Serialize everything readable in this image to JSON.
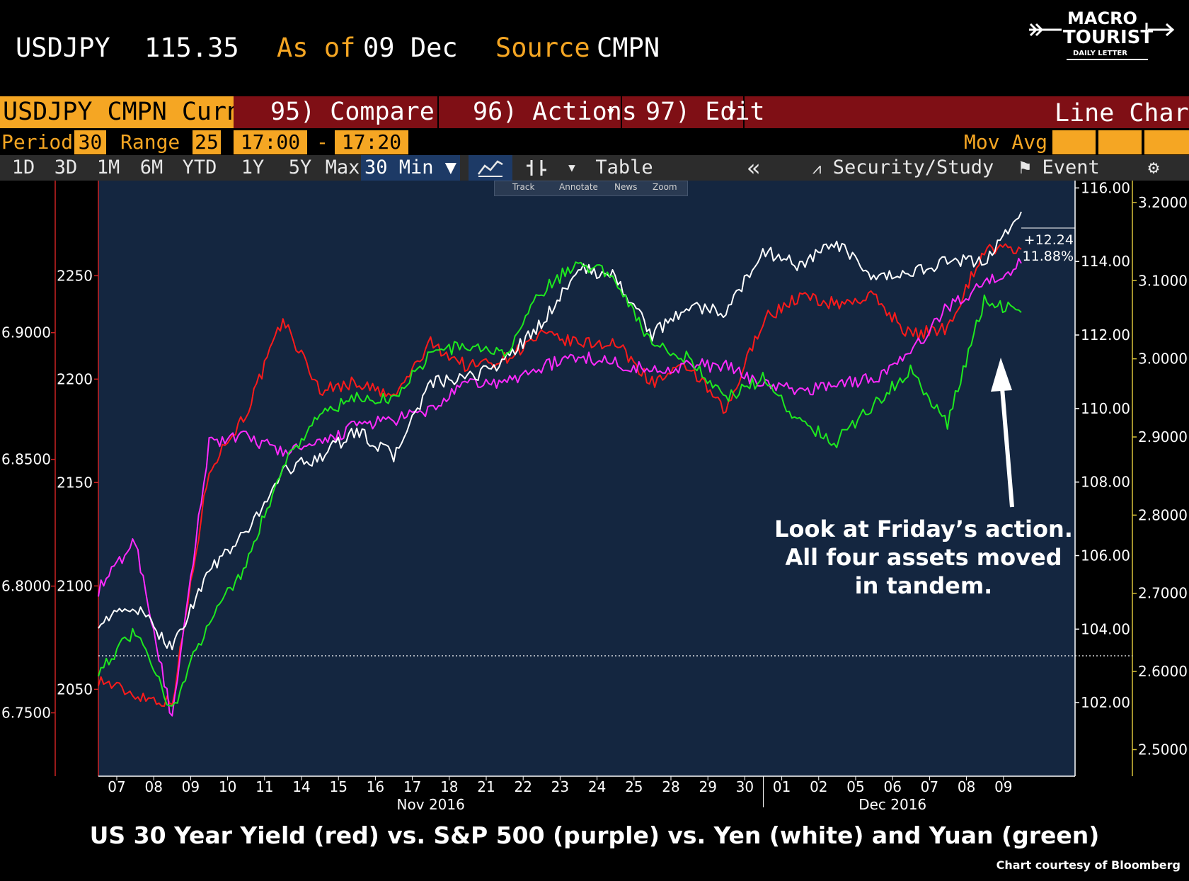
{
  "header": {
    "ticker": "USDJPY",
    "price": "115.35",
    "as_of_label": "As of",
    "as_of_date": "09 Dec",
    "source_label": "Source",
    "source_value": "CMPN"
  },
  "logo": {
    "line1": "MACRO",
    "line2": "TOURIST",
    "line3": "DAILY LETTER"
  },
  "toolbar": {
    "security": "USDJPY CMPN Curnc",
    "compare": "95) Compare",
    "actions": "96) Actions",
    "edit": "97) Edit",
    "chart_type": "Line Chart",
    "period_label": "Period",
    "period_value": "30",
    "range_label": "Range",
    "range_value": "25",
    "time_from": "17:00",
    "dash": "-",
    "time_to": "17:20",
    "mov_avg": "Mov Avg",
    "ranges": [
      "1D",
      "3D",
      "1M",
      "6M",
      "YTD",
      "1Y",
      "5Y",
      "Max"
    ],
    "interval": "30 Min ▼",
    "table": "Table",
    "back": "«",
    "security_study": "Security/Study",
    "event": "Event",
    "settings_icon": "gear-icon",
    "mini_tools": [
      "Track",
      "Annotate",
      "News",
      "Zoom"
    ]
  },
  "chart_data": {
    "type": "line",
    "title": "US 30 Year Yield (red) vs. S&P 500 (purple) vs. Yen (white) and Yuan (green)",
    "x_labels": [
      "07",
      "08",
      "09",
      "10",
      "11",
      "14",
      "15",
      "16",
      "17",
      "18",
      "21",
      "22",
      "23",
      "24",
      "25",
      "28",
      "29",
      "30",
      "01",
      "02",
      "05",
      "06",
      "07",
      "08",
      "09"
    ],
    "month_labels": [
      "Nov 2016",
      "Dec 2016"
    ],
    "axes": {
      "yuan_left": {
        "ticks": [
          "6.7500",
          "6.8000",
          "6.8500",
          "6.9000"
        ],
        "range": [
          6.725,
          6.96
        ],
        "color": "#cc2222"
      },
      "spx_left": {
        "ticks": [
          "2050",
          "2100",
          "2150",
          "2200",
          "2250"
        ],
        "range": [
          2008,
          2296
        ],
        "color": "#cc2222"
      },
      "yen_right": {
        "ticks": [
          "102.00",
          "104.00",
          "106.00",
          "108.00",
          "110.00",
          "112.00",
          "114.00",
          "116.00"
        ],
        "range": [
          100.0,
          116.2
        ],
        "color": "#ffffff"
      },
      "yield_right": {
        "ticks": [
          "2.5000",
          "2.6000",
          "2.7000",
          "2.8000",
          "2.9000",
          "3.0000",
          "3.1000",
          "3.2000"
        ],
        "range": [
          2.466,
          3.228
        ],
        "color": "#d8c23a"
      }
    },
    "dotted_level": {
      "axis": "yield_right",
      "value": 2.62
    },
    "last_labels": [
      "+12.24",
      "11.88%"
    ],
    "series": [
      {
        "name": "US 30 Year Yield",
        "color": "#ff1a1a",
        "axis": "yield_right",
        "values": [
          2.59,
          2.57,
          2.56,
          2.86,
          2.93,
          3.05,
          2.96,
          2.97,
          2.95,
          3.02,
          2.99,
          3.0,
          3.03,
          3.02,
          3.02,
          2.97,
          2.99,
          2.93,
          3.05,
          3.08,
          3.07,
          3.08,
          3.03,
          3.04,
          3.14,
          3.14
        ]
      },
      {
        "name": "S&P 500",
        "color": "#ff2bff",
        "axis": "spx_left",
        "values": [
          2098,
          2122,
          2035,
          2170,
          2172,
          2165,
          2168,
          2178,
          2180,
          2185,
          2198,
          2198,
          2206,
          2211,
          2208,
          2204,
          2207,
          2206,
          2198,
          2194,
          2198,
          2200,
          2212,
          2235,
          2246,
          2256
        ]
      },
      {
        "name": "Yen",
        "color": "#ffffff",
        "axis": "yen_right",
        "values": [
          104.2,
          104.6,
          103.5,
          105.6,
          106.6,
          108.3,
          108.7,
          109.4,
          108.7,
          110.7,
          110.8,
          111.3,
          112.3,
          113.8,
          113.6,
          112.0,
          112.8,
          112.6,
          114.3,
          113.9,
          114.5,
          113.5,
          113.7,
          114.0,
          114.0,
          115.35
        ]
      },
      {
        "name": "Yuan",
        "color": "#1eea1e",
        "axis": "yuan_left",
        "values": [
          6.767,
          6.782,
          6.751,
          6.787,
          6.808,
          6.848,
          6.868,
          6.874,
          6.874,
          6.892,
          6.895,
          6.891,
          6.916,
          6.928,
          6.922,
          6.895,
          6.89,
          6.874,
          6.882,
          6.865,
          6.857,
          6.872,
          6.885,
          6.864,
          6.913,
          6.908
        ]
      }
    ],
    "annotation": {
      "lines": [
        "Look at Friday’s action.",
        "All four assets moved",
        "in tandem."
      ]
    }
  },
  "credit": "Chart courtesy of Bloomberg"
}
